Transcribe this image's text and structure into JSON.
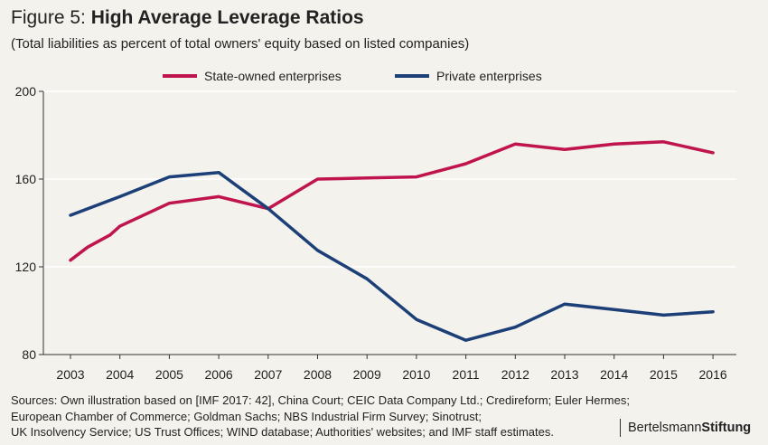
{
  "header": {
    "title_prefix": "Figure 5:",
    "title_main": "High Average Leverage Ratios",
    "subtitle": "(Total liabilities as percent of total owners' equity based on listed companies)"
  },
  "chart_data": {
    "type": "line",
    "x": [
      "2003",
      "2004",
      "2005",
      "2006",
      "2007",
      "2008",
      "2009",
      "2010",
      "2011",
      "2012",
      "2013",
      "2014",
      "2015",
      "2016"
    ],
    "ylim": [
      80,
      200
    ],
    "yticks": [
      80,
      120,
      160,
      200
    ],
    "grid": true,
    "legend_position": "top",
    "series": [
      {
        "name": "State-owned enterprises",
        "color": "#c0144e",
        "points": [
          [
            2003,
            123
          ],
          [
            2003.35,
            129
          ],
          [
            2003.8,
            134.5
          ],
          [
            2004,
            138.5
          ],
          [
            2005,
            149
          ],
          [
            2006,
            152
          ],
          [
            2007,
            146.5
          ],
          [
            2008,
            160
          ],
          [
            2009,
            160.5
          ],
          [
            2010,
            161
          ],
          [
            2011,
            167
          ],
          [
            2012,
            176
          ],
          [
            2013,
            173.5
          ],
          [
            2014,
            176
          ],
          [
            2015,
            177
          ],
          [
            2016,
            172
          ]
        ]
      },
      {
        "name": "Private enterprises",
        "color": "#1c3f78",
        "points": [
          [
            2003,
            143.5
          ],
          [
            2004,
            152
          ],
          [
            2005,
            161
          ],
          [
            2006,
            163
          ],
          [
            2007,
            146.5
          ],
          [
            2008,
            127.5
          ],
          [
            2009,
            114.5
          ],
          [
            2010,
            96
          ],
          [
            2011,
            86.5
          ],
          [
            2012,
            92.5
          ],
          [
            2013,
            103
          ],
          [
            2014,
            100.5
          ],
          [
            2015,
            98
          ],
          [
            2016,
            99.5
          ]
        ]
      }
    ]
  },
  "footer": {
    "sources": [
      "Sources: Own illustration based on [IMF 2017: 42], China Court; CEIC Data Company Ltd.; Credireform; Euler Hermes;",
      "European Chamber of Commerce; Goldman Sachs; NBS Industrial Firm Survey; Sinotrust;",
      "UK Insolvency Service; US Trust Offices; WIND database; Authorities' websites; and IMF staff estimates."
    ],
    "brand_regular": "Bertelsmann",
    "brand_bold": "Stiftung"
  }
}
